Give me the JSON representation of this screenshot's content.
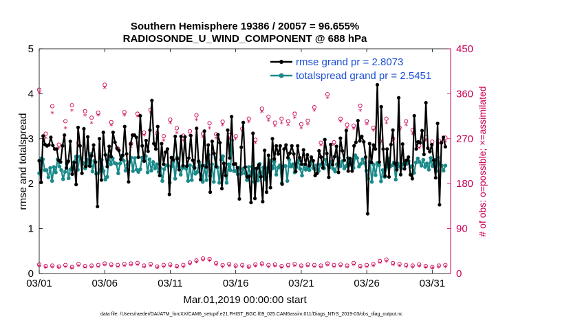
{
  "chart_data": {
    "type": "line",
    "title": "Southern Hemisphere 19386 / 20057 = 96.655%",
    "subtitle": "RADIOSONDE_U_WIND_COMPONENT @ 688 hPa",
    "xlabel": "Mar.01,2019 00:00:00 start",
    "ylabel": "rmse and totalspread",
    "ylabel_right": "# of obs: o=possible; ×=assimilated",
    "xlim": [
      0,
      31.4
    ],
    "ylim": [
      0,
      5
    ],
    "ylim_right": [
      0,
      450
    ],
    "x_ticks": [
      0,
      5,
      10,
      15,
      20,
      25,
      30
    ],
    "x_tick_labels": [
      "03/01",
      "03/06",
      "03/11",
      "03/16",
      "03/21",
      "03/26",
      "03/31"
    ],
    "y_ticks": [
      0,
      1,
      2,
      3,
      4,
      5
    ],
    "y_tick_labels": [
      "0",
      "1",
      "2",
      "3",
      "4",
      "5"
    ],
    "y_ticks_right": [
      0,
      90,
      180,
      270,
      360,
      450
    ],
    "y_tick_labels_right": [
      "0",
      "90",
      "180",
      "270",
      "360",
      "450"
    ],
    "footnote": "data file: /Users/raeder/DAI/ATM_forcXX/CAM6_setup/f.e21.FHIST_BGC.f09_025.CAM6assim.011/Diags_NTrS_2019-03/obs_diag_output.nc",
    "series": [
      {
        "name": "rmse grand pr = 2.8073",
        "axis": "left",
        "color": "#000000",
        "values": [
          2.51,
          2.03,
          3.06,
          2.87,
          2.84,
          2.86,
          3.03,
          2.85,
          2.77,
          2.77,
          2.52,
          2.48,
          2.84,
          3.08,
          2.35,
          2.5,
          2.94,
          2.21,
          2.47,
          1.98,
          3.25,
          2.84,
          2.23,
          3.22,
          2.38,
          3.04,
          2.39,
          2.62,
          2.86,
          2.48,
          1.49,
          3.0,
          2.08,
          3.14,
          2.64,
          2.38,
          2.83,
          2.6,
          3.14,
          2.92,
          2.79,
          2.74,
          2.54,
          2.63,
          3.27,
          2.66,
          2.04,
          2.88,
          3.08,
          3.08,
          3.03,
          2.59,
          3.51,
          2.84,
          2.5,
          2.96,
          2.72,
          3.19,
          3.85,
          2.89,
          2.77,
          3.27,
          2.18,
          2.89,
          2.43,
          2.7,
          2.77,
          1.76,
          2.58,
          2.53,
          3.05,
          2.55,
          2.31,
          3.05,
          2.4,
          3.04,
          2.39,
          2.57,
          3.07,
          2.52,
          2.35,
          3.23,
          2.5,
          2.09,
          2.4,
          3.17,
          2.37,
          2.86,
          1.81,
          2.94,
          2.67,
          2.38,
          3.09,
          2.91,
          1.89,
          2.45,
          2.18,
          3.19,
          2.57,
          3.49,
          2.43,
          2.44,
          2.35,
          1.66,
          2.81,
          3.36,
          2.37,
          2.15,
          2.16,
          1.58,
          3.12,
          1.67,
          2.34,
          2.42,
          2.15,
          1.6,
          2.74,
          1.81,
          2.63,
          1.91,
          3.0,
          2.55,
          2.84,
          2.66,
          2.84,
          1.99,
          2.77,
          2.86,
          2.58,
          2.68,
          2.84,
          2.66,
          2.27,
          2.84,
          2.58,
          2.43,
          2.75,
          2.43,
          2.64,
          2.4,
          2.59,
          2.51,
          2.18,
          2.23,
          2.73,
          2.59,
          2.35,
          2.98,
          2.67,
          2.14,
          2.87,
          2.42,
          2.6,
          2.83,
          2.25,
          3.01,
          2.73,
          2.52,
          3.18,
          2.28,
          2.56,
          2.28,
          2.84,
          2.92,
          3.4,
          2.95,
          3.05,
          2.93,
          2.59,
          1.33,
          2.89,
          2.47,
          2.86,
          2.77,
          4.2,
          2.48,
          3.71,
          2.77,
          2.17,
          2.77,
          2.15,
          2.87,
          3.19,
          2.45,
          2.31,
          3.91,
          2.2,
          2.88,
          2.33,
          2.52,
          2.59,
          2.2,
          2.11,
          3.51,
          2.77,
          2.93,
          2.91,
          3.18,
          2.65,
          3.8,
          2.79,
          2.71,
          2.87,
          2.52,
          2.13,
          3.34,
          1.53,
          2.91,
          3.03,
          2.82
        ],
        "legend": {
          "label": "rmse grand pr = 2.8073"
        }
      },
      {
        "name": "totalspread grand pr = 2.5451",
        "axis": "left",
        "color": "#1a8a8a",
        "values": [
          2.23,
          2.56,
          2.54,
          2.3,
          2.3,
          2.14,
          2.35,
          2.06,
          2.37,
          2.25,
          2.54,
          2.38,
          2.3,
          2.1,
          2.26,
          2.45,
          2.12,
          2.32,
          2.37,
          2.48,
          2.6,
          2.31,
          2.6,
          2.56,
          2.46,
          2.34,
          2.53,
          2.42,
          2.66,
          2.27,
          2.51,
          2.22,
          2.23,
          2.29,
          2.53,
          2.28,
          2.09,
          2.15,
          2.62,
          2.43,
          2.56,
          2.46,
          2.44,
          2.23,
          2.45,
          2.62,
          2.51,
          2.29,
          2.42,
          2.48,
          2.58,
          2.28,
          2.57,
          2.31,
          2.26,
          2.32,
          2.58,
          2.53,
          2.61,
          2.25,
          2.54,
          2.29,
          2.48,
          2.34,
          2.43,
          2.26,
          2.35,
          2.06,
          2.32,
          2.41,
          2.4,
          2.02,
          2.38,
          2.49,
          2.11,
          2.58,
          2.38,
          2.2,
          2.35,
          2.37,
          2.33,
          2.06,
          2.41,
          2.08,
          2.38,
          2.22,
          2.26,
          2.47,
          2.38,
          2.04,
          2.4,
          2.08,
          2.64,
          2.17,
          2.43,
          2.04,
          2.58,
          2.36,
          2.02,
          2.53,
          2.61,
          2.26,
          2.02,
          2.43,
          2.3,
          2.96,
          2.28,
          2.28,
          2.21,
          2.36,
          2.22,
          2.33,
          2.23,
          2.08,
          2.37,
          2.2,
          2.38,
          2.04,
          2.33,
          2.07,
          2.44,
          2.17,
          2.36,
          2.1,
          2.34,
          2.26,
          2.51,
          2.34,
          2.49,
          2.2,
          2.36,
          2.41,
          2.01,
          2.39,
          2.39,
          2.06,
          2.53,
          2.38,
          2.43,
          2.25,
          2.37,
          2.51,
          2.33,
          2.18,
          2.42,
          2.31,
          2.36,
          2.3,
          2.49,
          2.35,
          2.32,
          2.41,
          2.28,
          2.42,
          2.45,
          2.34,
          2.53,
          2.42,
          2.36,
          2.49,
          2.33,
          2.27,
          2.43,
          2.57,
          2.39,
          2.5,
          2.34,
          2.39,
          2.57,
          2.42,
          2.5,
          2.35,
          2.63,
          2.57,
          2.38,
          2.44,
          2.54,
          2.46,
          2.29,
          2.11,
          2.49,
          2.04,
          2.42,
          2.19,
          2.46,
          2.41,
          2.05,
          2.3,
          2.15,
          2.38,
          2.56,
          2.38,
          2.41,
          2.47,
          2.09,
          2.45,
          2.38,
          2.34,
          2.43,
          2.47,
          2.44,
          2.5,
          2.37,
          2.39,
          2.24,
          2.47,
          2.56,
          2.48,
          2.4,
          2.53,
          2.37,
          2.45,
          2.31,
          2.57,
          2.39,
          2.53,
          2.28,
          2.58,
          2.43,
          2.4,
          2.29,
          2.4
        ],
        "legend": {
          "label": "totalspread grand pr = 2.5451"
        }
      },
      {
        "name": "possible",
        "axis": "right",
        "marker": "o",
        "color": "#cc0055",
        "x": [
          0,
          0.5,
          1,
          1.5,
          2,
          2.5,
          3,
          3.5,
          4,
          4.5,
          5,
          5.5,
          6,
          6.5,
          7,
          7.5,
          8,
          8.5,
          9,
          9.5,
          10,
          10.5,
          11,
          11.5,
          12,
          12.5,
          13,
          13.5,
          14,
          14.5,
          15,
          15.5,
          16,
          16.5,
          17,
          17.5,
          18,
          18.5,
          19,
          19.5,
          20,
          20.5,
          21,
          21.5,
          22,
          22.5,
          23,
          23.5,
          24,
          24.5,
          25,
          25.5,
          26,
          26.5,
          27,
          27.5,
          28,
          28.5,
          29,
          29.5,
          30,
          30.5,
          31
        ],
        "values": [
          368,
          280,
          335,
          258,
          305,
          337,
          262,
          325,
          312,
          322,
          378,
          303,
          250,
          323,
          260,
          320,
          282,
          328,
          281,
          275,
          308,
          291,
          276,
          285,
          317,
          280,
          301,
          279,
          304,
          277,
          275,
          290,
          310,
          268,
          330,
          314,
          302,
          310,
          305,
          320,
          299,
          306,
          333,
          262,
          359,
          263,
          310,
          298,
          296,
          336,
          305,
          292,
          265,
          310,
          270,
          292,
          305,
          287,
          256,
          273,
          264,
          266,
          272
        ],
        "note": "one possible-obs count per 12-hour cycle, right axis",
        "near_zero": [
          18,
          15,
          16,
          14,
          17,
          13,
          19,
          15,
          16,
          17,
          20,
          18,
          17,
          19,
          20,
          21,
          16,
          19,
          14,
          17,
          18,
          15,
          17,
          22,
          26,
          30,
          29,
          21,
          17,
          19,
          16,
          17,
          14,
          18,
          20,
          17,
          18,
          15,
          17,
          19,
          16,
          18,
          17,
          16,
          20,
          17,
          18,
          16,
          21,
          15,
          17,
          19,
          25,
          28,
          21,
          19,
          17,
          16,
          18,
          15,
          13,
          16,
          17
        ]
      },
      {
        "name": "assimilated",
        "axis": "right",
        "marker": "*",
        "color": "#cc0055",
        "x": [
          0,
          0.5,
          1,
          1.5,
          2,
          2.5,
          3,
          3.5,
          4,
          4.5,
          5,
          5.5,
          6,
          6.5,
          7,
          7.5,
          8,
          8.5,
          9,
          9.5,
          10,
          10.5,
          11,
          11.5,
          12,
          12.5,
          13,
          13.5,
          14,
          14.5,
          15,
          15.5,
          16,
          16.5,
          17,
          17.5,
          18,
          18.5,
          19,
          19.5,
          20,
          20.5,
          21,
          21.5,
          22,
          22.5,
          23,
          23.5,
          24,
          24.5,
          25,
          25.5,
          26,
          26.5,
          27,
          27.5,
          28,
          28.5,
          29,
          29.5,
          30,
          30.5,
          31
        ],
        "values": [
          360,
          270,
          320,
          250,
          290,
          325,
          255,
          315,
          300,
          315,
          370,
          295,
          245,
          315,
          252,
          313,
          275,
          320,
          270,
          265,
          300,
          280,
          265,
          276,
          306,
          272,
          290,
          270,
          296,
          268,
          268,
          284,
          302,
          260,
          322,
          305,
          294,
          300,
          296,
          310,
          290,
          297,
          325,
          255,
          350,
          256,
          303,
          290,
          288,
          325,
          297,
          285,
          258,
          300,
          262,
          285,
          296,
          278,
          250,
          265,
          256,
          258,
          262
        ],
        "near_zero": [
          13,
          10,
          11,
          10,
          12,
          9,
          14,
          10,
          11,
          12,
          15,
          13,
          12,
          14,
          15,
          16,
          11,
          14,
          10,
          12,
          13,
          10,
          12,
          17,
          21,
          25,
          24,
          16,
          12,
          14,
          11,
          12,
          10,
          13,
          15,
          12,
          13,
          10,
          12,
          14,
          11,
          13,
          12,
          11,
          15,
          12,
          13,
          11,
          16,
          10,
          12,
          14,
          20,
          23,
          16,
          14,
          12,
          11,
          13,
          10,
          9,
          11,
          12
        ]
      }
    ]
  }
}
